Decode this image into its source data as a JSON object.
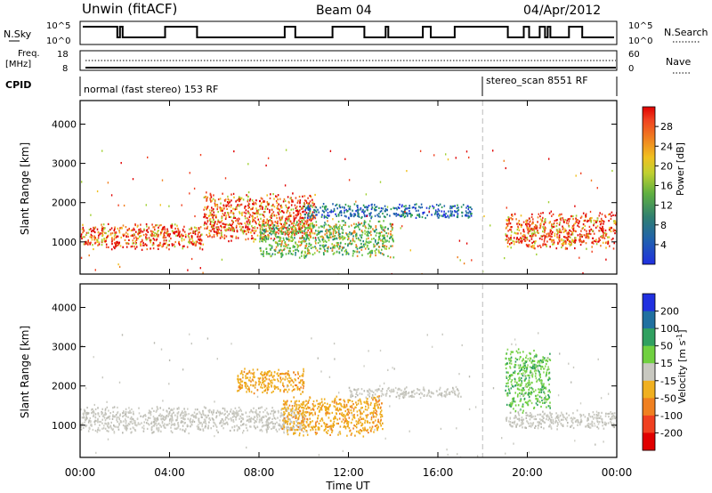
{
  "header": {
    "station": "Unwin (fitACF)",
    "beam": "Beam 04",
    "date": "04/Apr/2012"
  },
  "status_panels": {
    "nsky_label": "N.Sky",
    "nsky_ticks": [
      "10^5",
      "10^0"
    ],
    "nsearch_label": "N.Search",
    "nsearch_ticks": [
      "10^5",
      "10^0"
    ],
    "freq_label": "Freq.",
    "freq_unit": "[MHz]",
    "freq_ticks": [
      "18",
      "8"
    ],
    "nave_label": "Nave",
    "nave_ticks": [
      "60",
      "0"
    ],
    "cpid_label": "CPID",
    "cpid_segments": [
      {
        "label": "normal (fast stereo) 153 RF",
        "start_hour": 0
      },
      {
        "label": "stereo_scan 8551 RF",
        "start_hour": 18
      }
    ]
  },
  "chart_data": [
    {
      "type": "heatmap",
      "panel": "power",
      "ylabel": "Slant Range [km]",
      "x_range_hours": [
        0,
        24
      ],
      "ylim": [
        180,
        4600
      ],
      "yticks": [
        1000,
        2000,
        3000,
        4000
      ],
      "colorbar": {
        "label": "Power [dB]",
        "ticks": [
          "4",
          "8",
          "12",
          "16",
          "20",
          "24",
          "28"
        ],
        "colors": [
          "#2030e0",
          "#2060b0",
          "#208080",
          "#30a050",
          "#60c040",
          "#a0d030",
          "#f0c020",
          "#f08020",
          "#f04020",
          "#e00000"
        ]
      },
      "scatter_bands": [
        {
          "start_hour": 0.0,
          "end_hour": 5.5,
          "range_lo": 800,
          "range_hi": 1500,
          "level": "high"
        },
        {
          "start_hour": 5.5,
          "end_hour": 10.5,
          "range_lo": 1000,
          "range_hi": 2300,
          "level": "high"
        },
        {
          "start_hour": 8.0,
          "end_hour": 14.0,
          "range_lo": 600,
          "range_hi": 1600,
          "level": "medium"
        },
        {
          "start_hour": 10.0,
          "end_hour": 17.5,
          "range_lo": 1600,
          "range_hi": 2000,
          "level": "low"
        },
        {
          "start_hour": 19.0,
          "end_hour": 24.0,
          "range_lo": 800,
          "range_hi": 1800,
          "level": "high"
        }
      ]
    },
    {
      "type": "heatmap",
      "panel": "velocity",
      "ylabel": "Slant Range [km]",
      "xlabel": "Time UT",
      "x_range_hours": [
        0,
        24
      ],
      "xticks": [
        "00:00",
        "04:00",
        "08:00",
        "12:00",
        "16:00",
        "20:00",
        "00:00"
      ],
      "ylim": [
        180,
        4600
      ],
      "yticks": [
        1000,
        2000,
        3000,
        4000
      ],
      "colorbar": {
        "label": "Velocity [m s^-1]",
        "ticks": [
          "200",
          "100",
          "50",
          "15",
          "-15",
          "-50",
          "-100",
          "-200"
        ],
        "colors": [
          "#2030e0",
          "#2070a0",
          "#30a060",
          "#70d040",
          "#c8c8c0",
          "#f0b020",
          "#f08020",
          "#f04020",
          "#e00000"
        ]
      },
      "scatter_bands": [
        {
          "start_hour": 0.0,
          "end_hour": 10.0,
          "range_lo": 800,
          "range_hi": 1500,
          "velocity": "ground"
        },
        {
          "start_hour": 9.0,
          "end_hour": 13.5,
          "range_lo": 700,
          "range_hi": 1800,
          "velocity": "away"
        },
        {
          "start_hour": 7.0,
          "end_hour": 10.0,
          "range_lo": 1800,
          "range_hi": 2500,
          "velocity": "away"
        },
        {
          "start_hour": 12.0,
          "end_hour": 17.0,
          "range_lo": 1700,
          "range_hi": 2000,
          "velocity": "ground"
        },
        {
          "start_hour": 19.0,
          "end_hour": 24.0,
          "range_lo": 900,
          "range_hi": 1400,
          "velocity": "ground"
        },
        {
          "start_hour": 19.0,
          "end_hour": 21.0,
          "range_lo": 1300,
          "range_hi": 3000,
          "velocity": "toward"
        }
      ]
    }
  ]
}
